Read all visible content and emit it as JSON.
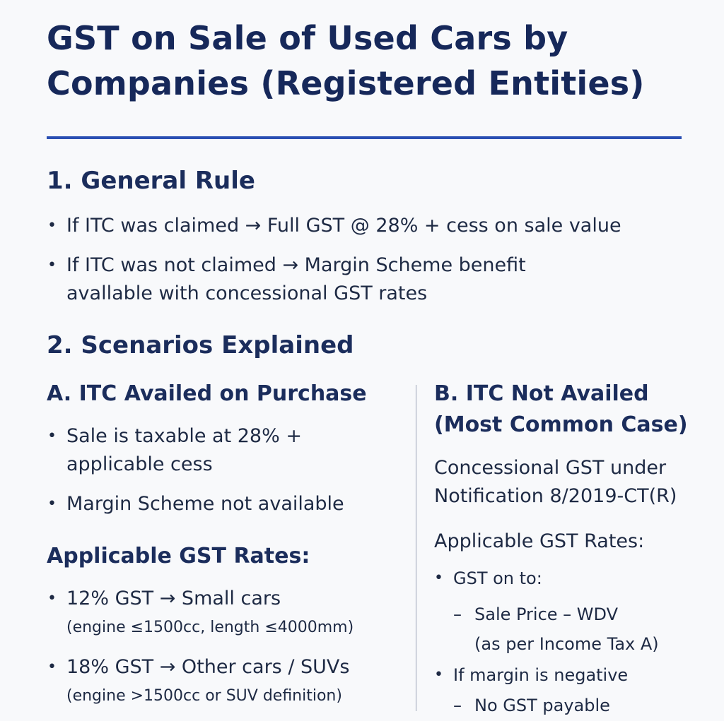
{
  "title_line1": "GST on Sale of Used Cars by",
  "title_line2": "Companies (Registered Entities)",
  "section1": {
    "heading": "1. General Rule",
    "bullet1": "If ITC was claimed  →  Full GST @ 28% + cess on sale value",
    "bullet2_line1": "If ITC was not claimed → Margin Scheme benefit",
    "bullet2_line2": "avallable with concessional GST rates"
  },
  "section2": {
    "heading": "2. Scenarios Explained"
  },
  "col_a": {
    "heading": "A. ITC Availed on Purchase",
    "bullet1_line1": "Sale is taxable at 28% +",
    "bullet1_line2": "applicable cess",
    "bullet2": "Margin Scheme not available",
    "rates_heading": "Applicable GST Rates:",
    "rate1": "12% GST  →  Small cars",
    "rate1_note": "(engine ≤1500cc, length ≤4000mm)",
    "rate2": "18% GST  → Other cars / SUVs",
    "rate2_note": "(engine >1500cc or SUV definition)"
  },
  "col_b": {
    "heading_line1": "B. ITC Not Availed",
    "heading_line2": "(Most Common Case)",
    "desc_line1": "Concessional GST under",
    "desc_line2": "Notification 8/2019-CT(R)",
    "rates_heading": "Applicable GST Rates:",
    "bullet1": "GST on to:",
    "dash": "–",
    "sub1_line1": "Sale Price – WDV",
    "sub1_line2": "(as per Income Tax A)",
    "bullet2": "If margin is negative",
    "sub2": "No GST payable"
  }
}
